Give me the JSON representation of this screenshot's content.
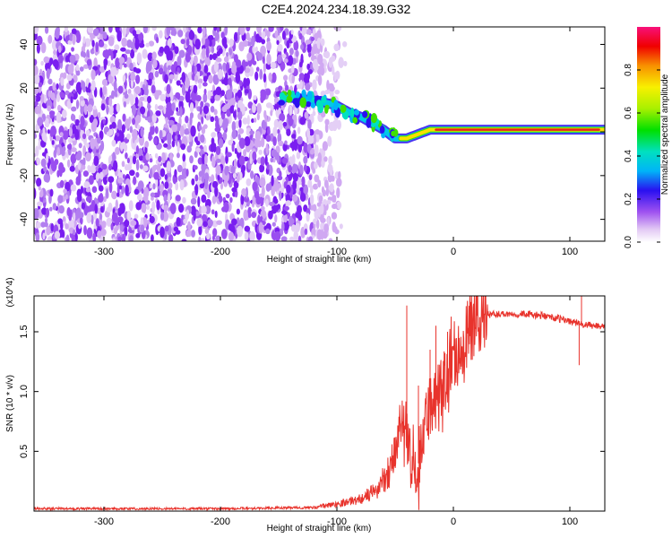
{
  "title": "C2E4.2024.234.18.39.G32",
  "chart_data": [
    {
      "type": "heatmap",
      "xlabel": "Height of straight line (km)",
      "ylabel": "Frequency (Hz)",
      "xlim": [
        -360,
        130
      ],
      "ylim": [
        -50,
        48
      ],
      "x_ticks": [
        -300,
        -200,
        -100,
        0,
        100
      ],
      "y_ticks": [
        -40,
        -20,
        0,
        20,
        40
      ],
      "colorbar": {
        "label": "Normalized spectral amplitude",
        "range": [
          0,
          1
        ],
        "ticks": [
          0.0,
          0.2,
          0.4,
          0.6,
          0.8
        ]
      },
      "ridge": {
        "x": [
          -145,
          -130,
          -115,
          -100,
          -90,
          -80,
          -70,
          -60,
          -55,
          -50,
          -45,
          -40,
          -30,
          -20,
          -10,
          0,
          20,
          40,
          60,
          80,
          100,
          120,
          130
        ],
        "y": [
          16,
          15,
          14,
          12,
          9,
          7,
          4,
          1,
          -1,
          -3,
          -3,
          -3,
          -1,
          1,
          1,
          1,
          1,
          1,
          1,
          1,
          1,
          1,
          1
        ]
      },
      "noise_region_x": [
        -360,
        -120
      ],
      "noise_fade_x": [
        -120,
        -90
      ]
    },
    {
      "type": "line",
      "xlabel": "Height of straight line (km)",
      "ylabel": "SNR (10 * v/v)",
      "y_multiplier": "(x10^4)",
      "xlim": [
        -360,
        130
      ],
      "ylim": [
        0,
        1.8
      ],
      "x_ticks": [
        -300,
        -200,
        -100,
        0,
        100
      ],
      "y_ticks": [
        0.5,
        1.0,
        1.5
      ],
      "y_tick_labels": [
        "0.5",
        "1.0",
        "1.5"
      ],
      "color": "#e8332c",
      "envelope": {
        "x": [
          -360,
          -200,
          -120,
          -100,
          -80,
          -65,
          -55,
          -50,
          -45,
          -42,
          -40,
          -37,
          -35,
          -32,
          -30,
          -25,
          -20,
          -15,
          -10,
          -5,
          0,
          10,
          20,
          30,
          40,
          60,
          80,
          100,
          110,
          120,
          130
        ],
        "y": [
          0.02,
          0.02,
          0.03,
          0.06,
          0.1,
          0.18,
          0.35,
          0.5,
          0.65,
          0.8,
          0.55,
          0.45,
          0.35,
          0.25,
          0.4,
          0.7,
          0.85,
          0.95,
          1.05,
          1.15,
          1.28,
          1.45,
          1.58,
          1.64,
          1.65,
          1.65,
          1.63,
          1.59,
          1.56,
          1.55,
          1.55
        ]
      },
      "spikes": [
        {
          "x": -40,
          "y": 1.72
        },
        {
          "x": -30,
          "y": 1.05
        },
        {
          "x": -20,
          "y": 1.35
        },
        {
          "x": -15,
          "y": 1.55
        },
        {
          "x": -5,
          "y": 1.5
        },
        {
          "x": 15,
          "y": 1.75
        },
        {
          "x": 108,
          "y": 1.22
        },
        {
          "x": 110,
          "y": 1.85
        }
      ]
    }
  ]
}
